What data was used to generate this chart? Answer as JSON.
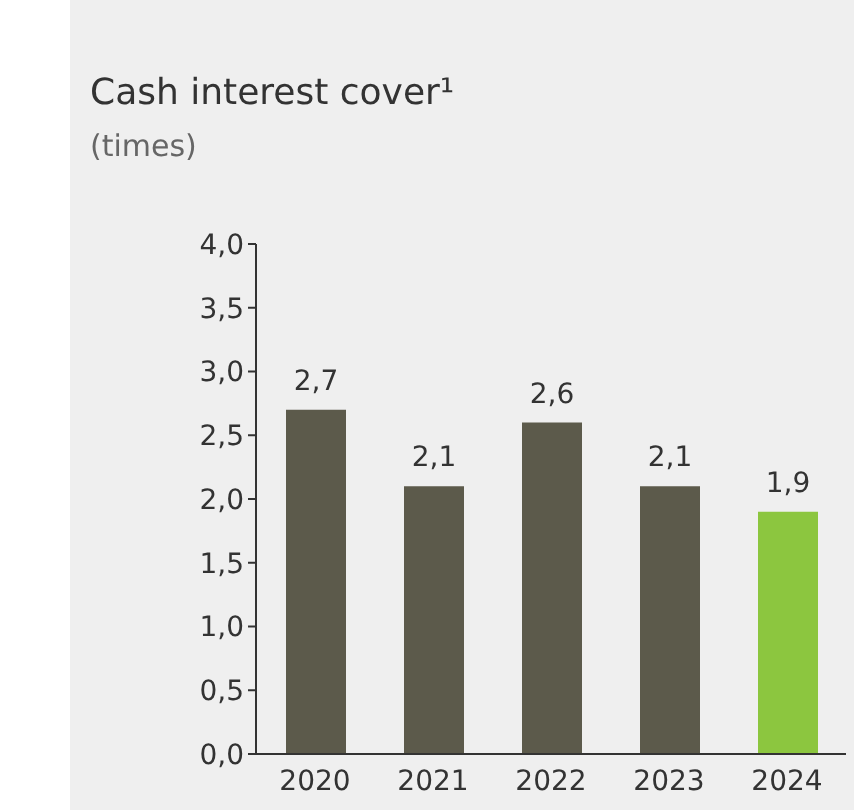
{
  "chart_data": {
    "type": "bar",
    "title": "Cash interest cover¹",
    "subtitle": "(times)",
    "categories": [
      "2020",
      "2021",
      "2022",
      "2023",
      "2024"
    ],
    "values": [
      2.7,
      2.1,
      2.6,
      2.1,
      1.9
    ],
    "colors": [
      "#5c5a4b",
      "#5c5a4b",
      "#5c5a4b",
      "#5c5a4b",
      "#8cc63f"
    ],
    "value_labels": [
      "2,7",
      "2,1",
      "2,6",
      "2,1",
      "1,9"
    ],
    "ylim": [
      0,
      4
    ],
    "yticks": [
      {
        "value": 0,
        "label": "0,0"
      },
      {
        "value": 0.5,
        "label": "0,5"
      },
      {
        "value": 1,
        "label": "1,0"
      },
      {
        "value": 1.5,
        "label": "1,5"
      },
      {
        "value": 2,
        "label": "2,0"
      },
      {
        "value": 2.5,
        "label": "2,5"
      },
      {
        "value": 3,
        "label": "3,0"
      },
      {
        "value": 3.5,
        "label": "3,5"
      },
      {
        "value": 4,
        "label": "4,0"
      }
    ],
    "grid": false,
    "legend": false
  }
}
